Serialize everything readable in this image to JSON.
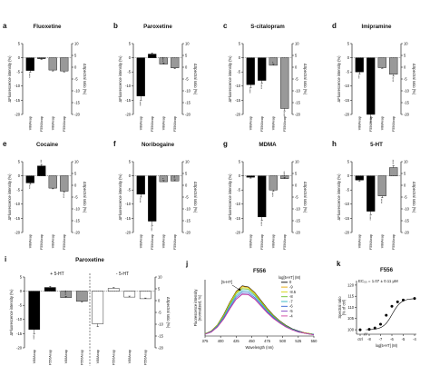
{
  "chart_data": [
    {
      "letter": "a",
      "title": "Fluoxetine",
      "type": "bar",
      "left_ylabel": "ΔFluorescence intensity (%)",
      "right_ylabel": "ΔSpectral ratio (%)",
      "left_yticks": [
        "5",
        "0",
        "-5",
        "-10",
        "-15",
        "-20"
      ],
      "right_yticks": [
        "10",
        "5",
        "0",
        "-5",
        "-10",
        "-15",
        "-20"
      ],
      "ylim_left": [
        -20,
        5
      ],
      "ylim_right": [
        -20,
        10
      ],
      "categories": [
        "V88Anap",
        "F556Anap",
        "V88Anap",
        "F556Anap"
      ],
      "bars": [
        {
          "axis": "left",
          "color": "#000000",
          "value": -4.5,
          "err": 0.6,
          "stars": "****"
        },
        {
          "axis": "left",
          "color": "#000000",
          "value": -0.3,
          "err": 0.3,
          "stars": ""
        },
        {
          "axis": "right",
          "color": "#999999",
          "value": -1.2,
          "err": 0.4,
          "stars": ""
        },
        {
          "axis": "right",
          "color": "#999999",
          "value": -1.6,
          "err": 0.4,
          "stars": ""
        }
      ]
    },
    {
      "letter": "b",
      "title": "Paroxetine",
      "type": "bar",
      "left_ylabel": "ΔFluorescence intensity (%)",
      "right_ylabel": "ΔSpectral ratio (%)",
      "left_yticks": [
        "5",
        "0",
        "-5",
        "-10",
        "-15",
        "-20"
      ],
      "right_yticks": [
        "10",
        "5",
        "0",
        "-5",
        "-10",
        "-15",
        "-20"
      ],
      "ylim_left": [
        -20,
        5
      ],
      "ylim_right": [
        -20,
        10
      ],
      "categories": [
        "V88Anap",
        "F556Anap",
        "V88Anap",
        "F556Anap"
      ],
      "bars": [
        {
          "axis": "left",
          "color": "#000000",
          "value": -13.5,
          "err": 1.5,
          "stars": "****"
        },
        {
          "axis": "left",
          "color": "#000000",
          "value": 1.3,
          "err": 0.4,
          "stars": ""
        },
        {
          "axis": "right",
          "color": "#999999",
          "value": 1.3,
          "err": 0.5,
          "stars": "****"
        },
        {
          "axis": "right",
          "color": "#999999",
          "value": -0.3,
          "err": 0.3,
          "stars": ""
        }
      ]
    },
    {
      "letter": "c",
      "title": "S-citalopram",
      "type": "bar",
      "left_ylabel": "ΔFluorescence intensity (%)",
      "right_ylabel": "ΔSpectral ratio (%)",
      "left_yticks": [
        "5",
        "0",
        "-5",
        "-10",
        "-15",
        "-20"
      ],
      "right_yticks": [
        "10",
        "5",
        "0",
        "-5",
        "-10",
        "-15",
        "-20"
      ],
      "ylim_left": [
        -20,
        5
      ],
      "ylim_right": [
        -20,
        10
      ],
      "categories": [
        "V88Anap",
        "F556Anap",
        "V88Anap",
        "F556Anap"
      ],
      "bars": [
        {
          "axis": "left",
          "color": "#000000",
          "value": -9.5,
          "err": 1.0,
          "stars": "****"
        },
        {
          "axis": "left",
          "color": "#000000",
          "value": -8.0,
          "err": 1.0,
          "stars": "****"
        },
        {
          "axis": "right",
          "color": "#999999",
          "value": 0.8,
          "err": 0.5,
          "stars": "*"
        },
        {
          "axis": "right",
          "color": "#999999",
          "value": -17.5,
          "err": 1.0,
          "stars": "****"
        }
      ]
    },
    {
      "letter": "d",
      "title": "Imipramine",
      "type": "bar",
      "left_ylabel": "ΔFluorescence intensity (%)",
      "right_ylabel": "ΔSpectral ratio (%)",
      "left_yticks": [
        "5",
        "0",
        "-5",
        "-10",
        "-15",
        "-20"
      ],
      "right_yticks": [
        "10",
        "5",
        "0",
        "-5",
        "-10",
        "-15",
        "-20"
      ],
      "ylim_left": [
        -20,
        5
      ],
      "ylim_right": [
        -20,
        10
      ],
      "categories": [
        "V88Anap",
        "F556Anap",
        "V88Anap",
        "F556Anap"
      ],
      "bars": [
        {
          "axis": "left",
          "color": "#000000",
          "value": -5.0,
          "err": 0.8,
          "stars": "***"
        },
        {
          "axis": "left",
          "color": "#000000",
          "value": -20.0,
          "err": 1.3,
          "stars": "****"
        },
        {
          "axis": "right",
          "color": "#999999",
          "value": -0.2,
          "err": 0.3,
          "stars": ""
        },
        {
          "axis": "right",
          "color": "#999999",
          "value": -3.0,
          "err": 0.8,
          "stars": "****"
        }
      ]
    },
    {
      "letter": "e",
      "title": "Cocaine",
      "type": "bar",
      "left_ylabel": "ΔFluorescence intensity (%)",
      "right_ylabel": "ΔSpectral ratio (%)",
      "left_yticks": [
        "5",
        "0",
        "-5",
        "-10",
        "-15",
        "-20"
      ],
      "right_yticks": [
        "10",
        "5",
        "0",
        "-5",
        "-10",
        "-15",
        "-20"
      ],
      "ylim_left": [
        -20,
        5
      ],
      "ylim_right": [
        -20,
        10
      ],
      "categories": [
        "V88Anap",
        "F556Anap",
        "V88Anap",
        "F556Anap"
      ],
      "bars": [
        {
          "axis": "left",
          "color": "#000000",
          "value": -2.5,
          "err": 0.5,
          "stars": "***"
        },
        {
          "axis": "left",
          "color": "#000000",
          "value": 3.5,
          "err": 0.5,
          "stars": "***"
        },
        {
          "axis": "right",
          "color": "#999999",
          "value": -1.2,
          "err": 0.3,
          "stars": ""
        },
        {
          "axis": "right",
          "color": "#999999",
          "value": -2.5,
          "err": 0.5,
          "stars": "****"
        }
      ]
    },
    {
      "letter": "f",
      "title": "Noribogaine",
      "type": "bar",
      "left_ylabel": "ΔFluorescence intensity (%)",
      "right_ylabel": "ΔSpectral ratio (%)",
      "left_yticks": [
        "5",
        "0",
        "-5",
        "-10",
        "-15",
        "-20"
      ],
      "right_yticks": [
        "10",
        "5",
        "0",
        "-5",
        "-10",
        "-15",
        "-20"
      ],
      "ylim_left": [
        -20,
        5
      ],
      "ylim_right": [
        -20,
        10
      ],
      "categories": [
        "V88Anap",
        "F556Anap",
        "V88Anap",
        "F556Anap"
      ],
      "bars": [
        {
          "axis": "left",
          "color": "#000000",
          "value": -6.5,
          "err": 1.0,
          "stars": "****"
        },
        {
          "axis": "left",
          "color": "#000000",
          "value": -16.0,
          "err": 1.5,
          "stars": "****"
        },
        {
          "axis": "right",
          "color": "#999999",
          "value": 1.5,
          "err": 0.5,
          "stars": "*"
        },
        {
          "axis": "right",
          "color": "#999999",
          "value": 1.8,
          "err": 0.5,
          "stars": "**"
        }
      ]
    },
    {
      "letter": "g",
      "title": "MDMA",
      "type": "bar",
      "left_ylabel": "ΔFluorescence intensity (%)",
      "right_ylabel": "ΔSpectral ratio (%)",
      "left_yticks": [
        "5",
        "0",
        "-5",
        "-10",
        "-15",
        "-20"
      ],
      "right_yticks": [
        "10",
        "5",
        "0",
        "-5",
        "-10",
        "-15",
        "-20"
      ],
      "ylim_left": [
        -20,
        5
      ],
      "ylim_right": [
        -20,
        10
      ],
      "categories": [
        "V88Anap",
        "F556Anap",
        "V88Anap",
        "F556Anap"
      ],
      "bars": [
        {
          "axis": "left",
          "color": "#000000",
          "value": -0.5,
          "err": 0.3,
          "stars": ""
        },
        {
          "axis": "left",
          "color": "#000000",
          "value": -14.5,
          "err": 1.2,
          "stars": "****"
        },
        {
          "axis": "right",
          "color": "#999999",
          "value": -2.0,
          "err": 0.5,
          "stars": "****"
        },
        {
          "axis": "right",
          "color": "#999999",
          "value": 2.8,
          "err": 0.6,
          "stars": "****"
        }
      ]
    },
    {
      "letter": "h",
      "title": "5-HT",
      "type": "bar",
      "left_ylabel": "ΔFluorescence intensity (%)",
      "right_ylabel": "ΔSpectral ratio (%)",
      "left_yticks": [
        "5",
        "0",
        "-5",
        "-10",
        "-15",
        "-20"
      ],
      "right_yticks": [
        "10",
        "5",
        "0",
        "-5",
        "-10",
        "-15",
        "-20"
      ],
      "ylim_left": [
        -20,
        5
      ],
      "ylim_right": [
        -20,
        10
      ],
      "categories": [
        "V88Anap",
        "F556Anap",
        "V88Anap",
        "F556Anap"
      ],
      "bars": [
        {
          "axis": "left",
          "color": "#000000",
          "value": -1.5,
          "err": 0.4,
          "stars": ""
        },
        {
          "axis": "left",
          "color": "#000000",
          "value": -12.5,
          "err": 1.2,
          "stars": "****"
        },
        {
          "axis": "right",
          "color": "#999999",
          "value": -4.5,
          "err": 0.8,
          "stars": "****"
        },
        {
          "axis": "right",
          "color": "#999999",
          "value": 7.5,
          "err": 0.8,
          "stars": "****"
        }
      ]
    },
    {
      "letter": "i",
      "title": "Paroxetine",
      "type": "bar",
      "left_ylabel": "ΔFluorescence intensity (%)",
      "right_ylabel": "ΔSpectral ratio (%)",
      "left_yticks": [
        "5",
        "0",
        "-5",
        "-10",
        "-15",
        "-20"
      ],
      "right_yticks": [
        "10",
        "5",
        "0",
        "-5",
        "-10",
        "-15",
        "-20"
      ],
      "ylim_left": [
        -20,
        5
      ],
      "ylim_right": [
        -20,
        10
      ],
      "categories": [
        "V88Anap",
        "F556Anap",
        "V88Anap",
        "F556Anap",
        "V88Anap",
        "F556Anap",
        "V88Anap",
        "F556Anap"
      ],
      "groups": [
        "+ 5-HT",
        "- 5-HT"
      ],
      "bars": [
        {
          "axis": "left",
          "color": "#000000",
          "value": -13.5,
          "err": 1.5,
          "stars": "****"
        },
        {
          "axis": "left",
          "color": "#000000",
          "value": 1.3,
          "err": 0.4,
          "stars": ""
        },
        {
          "axis": "right",
          "color": "#999999",
          "value": 1.3,
          "err": 0.5,
          "stars": "****"
        },
        {
          "axis": "right",
          "color": "#999999",
          "value": -0.3,
          "err": 0.3,
          "stars": ""
        },
        {
          "axis": "left",
          "color": "#ffffff",
          "value": -11.5,
          "err": 1.0,
          "stars": ""
        },
        {
          "axis": "left",
          "color": "#ffffff",
          "value": 1.0,
          "err": 0.3,
          "stars": ""
        },
        {
          "axis": "right",
          "color": "#ffffff",
          "value": 1.5,
          "err": 0.4,
          "stars": ""
        },
        {
          "axis": "right",
          "color": "#ffffff",
          "value": 0.8,
          "err": 0.3,
          "stars": ""
        }
      ]
    },
    {
      "letter": "j",
      "title": "F556",
      "type": "line",
      "xlabel": "Wavelength (nm)",
      "ylabel_lines": [
        "Fluorescence intensity",
        "(normalized, %)"
      ],
      "xticks": [
        "375",
        "400",
        "425",
        "450",
        "475",
        "500",
        "525",
        "550"
      ],
      "xlim": [
        375,
        550
      ],
      "ylim": [
        0,
        100
      ],
      "annotation": "[5-HT]",
      "legend_title": "log[5-HT] (M)",
      "x": [
        375,
        385,
        395,
        405,
        415,
        425,
        435,
        445,
        455,
        465,
        475,
        485,
        495,
        505,
        515,
        525,
        535,
        545,
        550
      ],
      "series": [
        {
          "name": "0",
          "color": "#000000",
          "values": [
            4,
            9,
            20,
            38,
            60,
            79,
            89,
            87,
            77,
            63,
            49,
            37,
            27,
            19,
            13,
            9,
            6,
            4,
            3
          ]
        },
        {
          "name": "-9",
          "color": "#e8a800",
          "values": [
            4,
            9,
            20,
            37,
            59,
            78,
            88,
            86,
            76,
            62,
            48,
            36,
            26,
            18,
            12,
            8,
            6,
            4,
            3
          ]
        },
        {
          "name": "-8.5",
          "color": "#d4d40a",
          "values": [
            4,
            8,
            19,
            36,
            58,
            77,
            86,
            85,
            75,
            61,
            47,
            36,
            26,
            18,
            12,
            8,
            5,
            4,
            3
          ]
        },
        {
          "name": "-8",
          "color": "#6cbf2a",
          "values": [
            4,
            8,
            19,
            35,
            56,
            75,
            84,
            83,
            73,
            60,
            46,
            35,
            25,
            18,
            12,
            8,
            5,
            4,
            3
          ]
        },
        {
          "name": "-7",
          "color": "#2ab0c0",
          "values": [
            3,
            8,
            18,
            34,
            54,
            72,
            81,
            80,
            71,
            58,
            45,
            34,
            25,
            17,
            12,
            8,
            5,
            3,
            3
          ]
        },
        {
          "name": "-6",
          "color": "#3060d0",
          "values": [
            3,
            8,
            17,
            32,
            51,
            69,
            78,
            77,
            68,
            56,
            43,
            33,
            24,
            17,
            11,
            8,
            5,
            3,
            3
          ]
        },
        {
          "name": "-5",
          "color": "#8040c0",
          "values": [
            3,
            7,
            16,
            31,
            49,
            66,
            75,
            74,
            66,
            54,
            42,
            32,
            23,
            16,
            11,
            7,
            5,
            3,
            2
          ]
        },
        {
          "name": "-4",
          "color": "#d040a0",
          "values": [
            3,
            7,
            16,
            30,
            48,
            65,
            74,
            73,
            65,
            53,
            41,
            31,
            23,
            16,
            11,
            7,
            5,
            3,
            2
          ]
        }
      ]
    },
    {
      "letter": "k",
      "title": "F556",
      "type": "scatter",
      "annotation": "EC₅₀ = 1.07 ± 0.11 μM",
      "xlabel": "log[5-HT] (M)",
      "ylabel_lines": [
        "Spectral ratio",
        "(% of ctrl)"
      ],
      "xticks": [
        "ctrl",
        "-8",
        "-7",
        "-6",
        "-5",
        "-4"
      ],
      "yticks": [
        "120",
        "115",
        "110",
        "105",
        "100"
      ],
      "ylim": [
        98,
        122
      ],
      "x": [
        -8,
        -7.5,
        -7,
        -6.5,
        -6,
        -5.5,
        -5,
        -4
      ],
      "values": [
        100.2,
        100.8,
        102.5,
        106.5,
        110.5,
        112.5,
        113.3,
        114.0
      ],
      "ctrl_value": 100.0
    }
  ]
}
